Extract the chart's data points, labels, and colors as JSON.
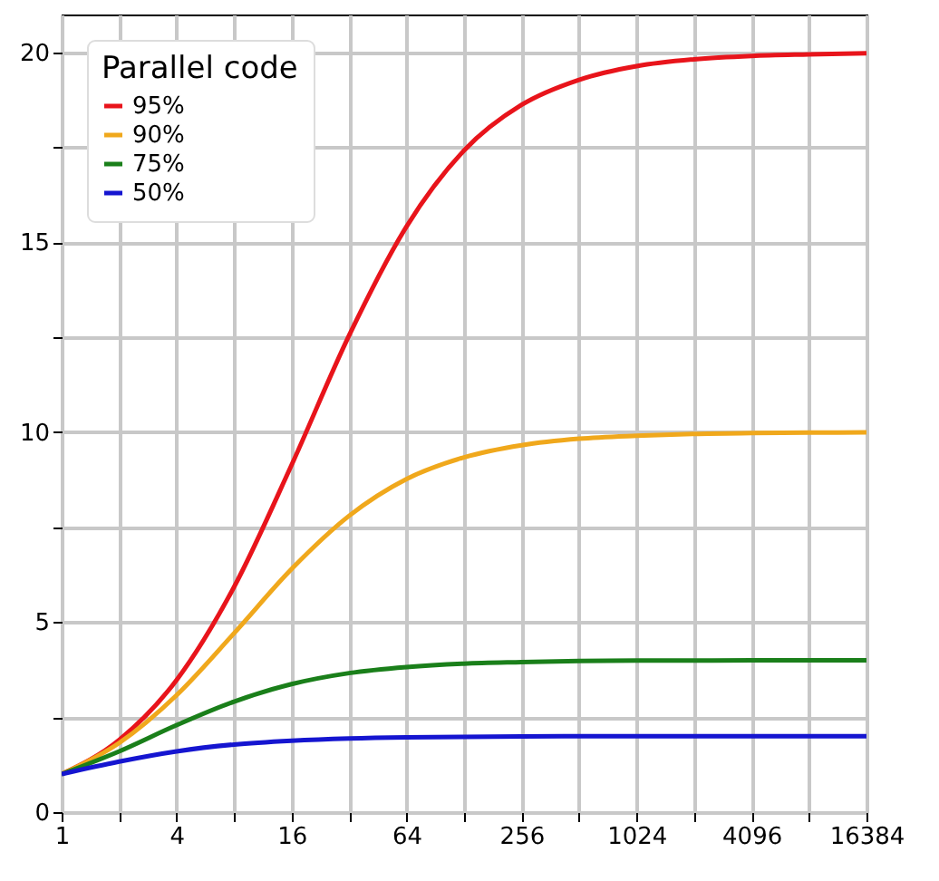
{
  "chart_data": {
    "type": "line",
    "legend_title": "Parallel code",
    "x": [
      1,
      2,
      4,
      8,
      16,
      32,
      64,
      128,
      256,
      512,
      1024,
      2048,
      4096,
      8192,
      16384
    ],
    "series": [
      {
        "name": "95%",
        "color": "#e8141b",
        "values": [
          1,
          1.9,
          3.48,
          5.93,
          9.14,
          12.55,
          15.42,
          17.42,
          18.62,
          19.28,
          19.64,
          19.82,
          19.91,
          19.95,
          19.98
        ]
      },
      {
        "name": "90%",
        "color": "#f0a81c",
        "values": [
          1,
          1.82,
          3.08,
          4.71,
          6.4,
          7.8,
          8.77,
          9.34,
          9.66,
          9.83,
          9.91,
          9.96,
          9.98,
          9.99,
          10.0
        ]
      },
      {
        "name": "75%",
        "color": "#1a7f1a",
        "values": [
          1,
          1.6,
          2.29,
          2.91,
          3.37,
          3.66,
          3.82,
          3.91,
          3.95,
          3.98,
          3.99,
          3.99,
          4.0,
          4.0,
          4.0
        ]
      },
      {
        "name": "50%",
        "color": "#1515d0",
        "values": [
          1,
          1.33,
          1.6,
          1.78,
          1.88,
          1.94,
          1.97,
          1.98,
          1.99,
          2.0,
          2.0,
          2.0,
          2.0,
          2.0,
          2.0
        ]
      }
    ],
    "log": "x",
    "xlim": [
      1,
      16384
    ],
    "xticks": [
      1,
      {
        "value": 2,
        "label": null
      },
      4,
      {
        "value": 8,
        "label": null
      },
      16,
      {
        "value": 32,
        "label": null
      },
      64,
      {
        "value": 128,
        "label": null
      },
      256,
      {
        "value": 512,
        "label": null
      },
      1024,
      {
        "value": 2048,
        "label": null
      },
      4096,
      {
        "value": 8192,
        "label": null
      },
      16384
    ],
    "ylim": [
      0,
      21
    ],
    "yticks": [
      0,
      {
        "value": 2.5,
        "label": null
      },
      5,
      {
        "value": 7.5,
        "label": null
      },
      10,
      {
        "value": 12.5,
        "label": null
      },
      15,
      {
        "value": 17.5,
        "label": null
      },
      20
    ],
    "grid": true,
    "legend": "top left",
    "marker": "none",
    "line_style": "solid"
  }
}
